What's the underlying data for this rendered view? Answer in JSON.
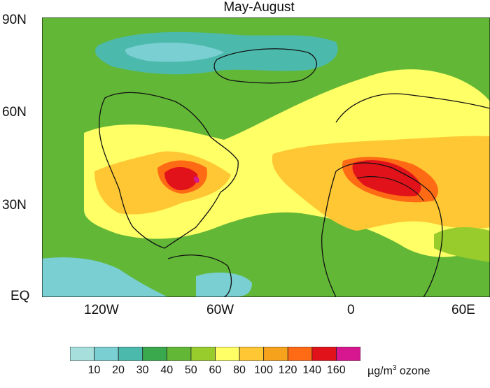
{
  "title": "May-August",
  "lat_labels": [
    "90N",
    "60N",
    "30N",
    "EQ"
  ],
  "lon_labels": [
    "120W",
    "60W",
    "0",
    "60E"
  ],
  "colorbar": {
    "ticks": [
      "10",
      "20",
      "30",
      "40",
      "50",
      "60",
      "80",
      "100",
      "120",
      "140",
      "160"
    ],
    "colors": [
      "#a6dfdc",
      "#79cfd1",
      "#4cb9ad",
      "#3aa84d",
      "#62b737",
      "#98cc2c",
      "#ffff66",
      "#ffc733",
      "#f7a21c",
      "#ff6a14",
      "#e1121a",
      "#d6178f"
    ],
    "unit_pre": "µg/m",
    "unit_sup": "3",
    "unit_post": " ozone"
  }
}
